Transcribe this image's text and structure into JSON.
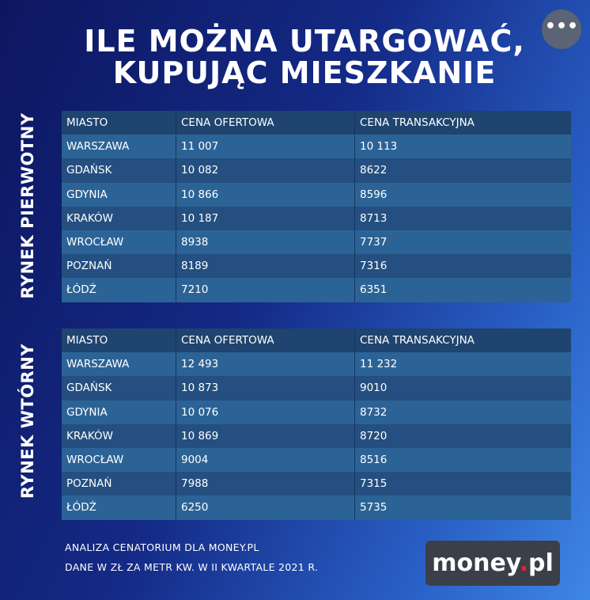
{
  "header": {
    "title": [
      "ILE MOŻNA UTARGOWAĆ,",
      "KUPUJĄC MIESZKANIE"
    ]
  },
  "sections": [
    {
      "label": "RYNEK PIERWOTNY",
      "table": {
        "columns": [
          "MIASTO",
          "CENA OFERTOWA",
          "CENA TRANSAKCYJNA"
        ],
        "rows": [
          [
            "WARSZAWA",
            "11 007",
            "10 113"
          ],
          [
            "GDAŃSK",
            "10 082",
            "8622"
          ],
          [
            "GDYNIA",
            "10 866",
            "8596"
          ],
          [
            "KRAKÓW",
            "10 187",
            "8713"
          ],
          [
            "WROCŁAW",
            "8938",
            "7737"
          ],
          [
            "POZNAŃ",
            "8189",
            "7316"
          ],
          [
            "ŁÓDŹ",
            "7210",
            "6351"
          ]
        ]
      }
    },
    {
      "label": "RYNEK WTÓRNY",
      "table": {
        "columns": [
          "MIASTO",
          "CENA OFERTOWA",
          "CENA TRANSAKCYJNA"
        ],
        "rows": [
          [
            "WARSZAWA",
            "12 493",
            "11 232"
          ],
          [
            "GDAŃSK",
            "10 873",
            "9010"
          ],
          [
            "GDYNIA",
            "10 076",
            "8732"
          ],
          [
            "KRAKÓW",
            "10 869",
            "8720"
          ],
          [
            "WROCŁAW",
            "9004",
            "8516"
          ],
          [
            "POZNAŃ",
            "7988",
            "7315"
          ],
          [
            "ŁÓDŹ",
            "6250",
            "5735"
          ]
        ]
      }
    }
  ],
  "footer": {
    "lines": [
      "ANALIZA CENATORIUM DLA MONEY.PL",
      "DANE W ZŁ ZA METR KW. W II KWARTALE 2021 R."
    ]
  },
  "logo": [
    "money",
    ".",
    "pl"
  ]
}
